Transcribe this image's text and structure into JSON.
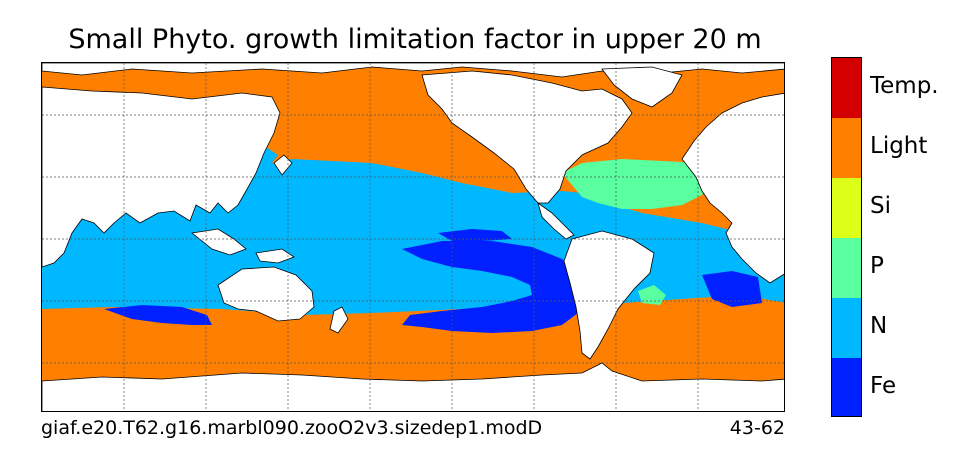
{
  "title": "Small Phyto. growth limitation factor in upper 20 m",
  "caption": {
    "case_name": "giaf.e20.T62.g16.marbl090.zooO2v3.sizedep1.modD",
    "years": "43-62"
  },
  "legend": {
    "entries": [
      {
        "label": "Temp.",
        "color": "#d40000"
      },
      {
        "label": "Light",
        "color": "#ff8000"
      },
      {
        "label": "Si",
        "color": "#dcff1a"
      },
      {
        "label": "P",
        "color": "#5affa0"
      },
      {
        "label": "N",
        "color": "#00b8ff"
      },
      {
        "label": "Fe",
        "color": "#0020ff"
      }
    ]
  },
  "colors": {
    "land": "#ffffff",
    "coastline": "#000000",
    "gridline": "#555555"
  },
  "map": {
    "projection": "cylindrical",
    "gridlines": "dotted"
  }
}
